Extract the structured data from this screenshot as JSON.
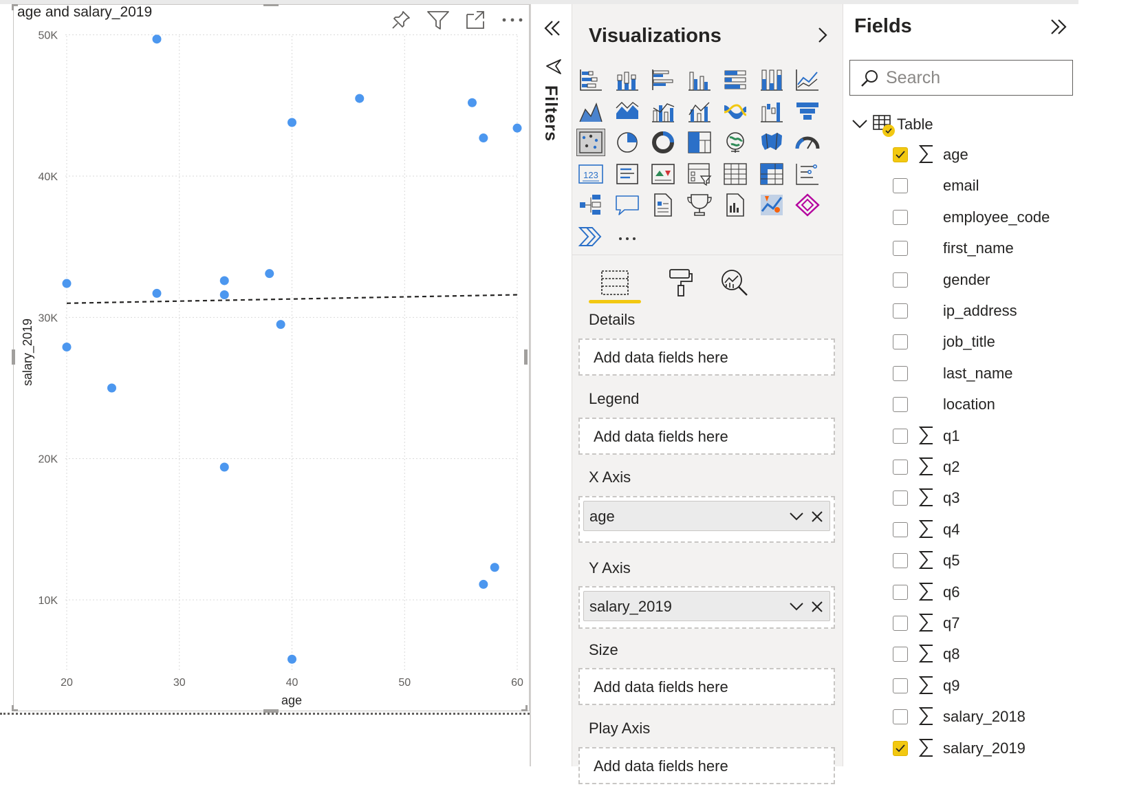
{
  "visual": {
    "title": "age and salary_2019",
    "header_icons": [
      "pin-icon",
      "filter-icon",
      "focus-mode-icon",
      "more-options-icon"
    ]
  },
  "chart_data": {
    "type": "scatter",
    "title": "age and salary_2019",
    "xlabel": "age",
    "ylabel": "salary_2019",
    "xlim": [
      20,
      60
    ],
    "ylim": [
      5000,
      50000
    ],
    "x_ticks": [
      "20",
      "30",
      "40",
      "50",
      "60"
    ],
    "y_ticks": [
      "10K",
      "20K",
      "30K",
      "40K",
      "50K"
    ],
    "y_tick_values": [
      10000,
      20000,
      30000,
      40000,
      50000
    ],
    "x_tick_values": [
      20,
      30,
      40,
      50,
      60
    ],
    "grid": true,
    "point_color": "#4c97ef",
    "trend_line": {
      "style": "dashed",
      "x": [
        20,
        60
      ],
      "y": [
        31000,
        31600
      ]
    },
    "points": [
      {
        "x": 28,
        "y": 49700
      },
      {
        "x": 46,
        "y": 45500
      },
      {
        "x": 56,
        "y": 45200
      },
      {
        "x": 40,
        "y": 43800
      },
      {
        "x": 57,
        "y": 42700
      },
      {
        "x": 60,
        "y": 43400
      },
      {
        "x": 20,
        "y": 32400
      },
      {
        "x": 34,
        "y": 32600
      },
      {
        "x": 38,
        "y": 33100
      },
      {
        "x": 28,
        "y": 31700
      },
      {
        "x": 34,
        "y": 31600
      },
      {
        "x": 39,
        "y": 29500
      },
      {
        "x": 20,
        "y": 27900
      },
      {
        "x": 24,
        "y": 25000
      },
      {
        "x": 34,
        "y": 19400
      },
      {
        "x": 58,
        "y": 12300
      },
      {
        "x": 57,
        "y": 11100
      },
      {
        "x": 40,
        "y": 5800
      }
    ]
  },
  "filters": {
    "label": "Filters"
  },
  "visualizations": {
    "title": "Visualizations",
    "icons": [
      "stacked-bar-chart-icon",
      "stacked-column-chart-icon",
      "clustered-bar-chart-icon",
      "clustered-column-chart-icon",
      "100-stacked-bar-chart-icon",
      "100-stacked-column-chart-icon",
      "line-chart-icon",
      "area-chart-icon",
      "stacked-area-chart-icon",
      "line-and-stacked-column-chart-icon",
      "line-and-clustered-column-chart-icon",
      "ribbon-chart-icon",
      "waterfall-chart-icon",
      "funnel-chart-icon",
      "scatter-chart-icon",
      "pie-chart-icon",
      "donut-chart-icon",
      "treemap-icon",
      "map-icon",
      "filled-map-icon",
      "gauge-icon",
      "card-icon",
      "multi-row-card-icon",
      "kpi-icon",
      "slicer-icon",
      "table-visual-icon",
      "matrix-icon",
      "r-script-visual-icon",
      "decomposition-tree-icon",
      "qa-icon",
      "paginated-report-icon",
      "key-influencers-icon",
      "smart-narrative-icon",
      "arcgis-map-icon",
      "power-apps-icon",
      "power-automate-icon",
      "more-visuals-icon"
    ],
    "tabs": [
      "fields-tab",
      "format-tab",
      "analytics-tab"
    ],
    "wells": {
      "details": {
        "label": "Details",
        "placeholder": "Add data fields here"
      },
      "legend": {
        "label": "Legend",
        "placeholder": "Add data fields here"
      },
      "x_axis": {
        "label": "X Axis",
        "value": "age"
      },
      "y_axis": {
        "label": "Y Axis",
        "value": "salary_2019"
      },
      "size": {
        "label": "Size",
        "placeholder": "Add data fields here"
      },
      "play_axis": {
        "label": "Play Axis",
        "placeholder": "Add data fields here"
      }
    }
  },
  "fields": {
    "title": "Fields",
    "search_placeholder": "Search",
    "table_name": "Table",
    "accent": "#f2c811",
    "items": [
      {
        "name": "age",
        "numeric": true,
        "checked": true
      },
      {
        "name": "email",
        "numeric": false,
        "checked": false
      },
      {
        "name": "employee_code",
        "numeric": false,
        "checked": false
      },
      {
        "name": "first_name",
        "numeric": false,
        "checked": false
      },
      {
        "name": "gender",
        "numeric": false,
        "checked": false
      },
      {
        "name": "ip_address",
        "numeric": false,
        "checked": false
      },
      {
        "name": "job_title",
        "numeric": false,
        "checked": false
      },
      {
        "name": "last_name",
        "numeric": false,
        "checked": false
      },
      {
        "name": "location",
        "numeric": false,
        "checked": false
      },
      {
        "name": "q1",
        "numeric": true,
        "checked": false
      },
      {
        "name": "q2",
        "numeric": true,
        "checked": false
      },
      {
        "name": "q3",
        "numeric": true,
        "checked": false
      },
      {
        "name": "q4",
        "numeric": true,
        "checked": false
      },
      {
        "name": "q5",
        "numeric": true,
        "checked": false
      },
      {
        "name": "q6",
        "numeric": true,
        "checked": false
      },
      {
        "name": "q7",
        "numeric": true,
        "checked": false
      },
      {
        "name": "q8",
        "numeric": true,
        "checked": false
      },
      {
        "name": "q9",
        "numeric": true,
        "checked": false
      },
      {
        "name": "salary_2018",
        "numeric": true,
        "checked": false
      },
      {
        "name": "salary_2019",
        "numeric": true,
        "checked": true
      }
    ]
  }
}
